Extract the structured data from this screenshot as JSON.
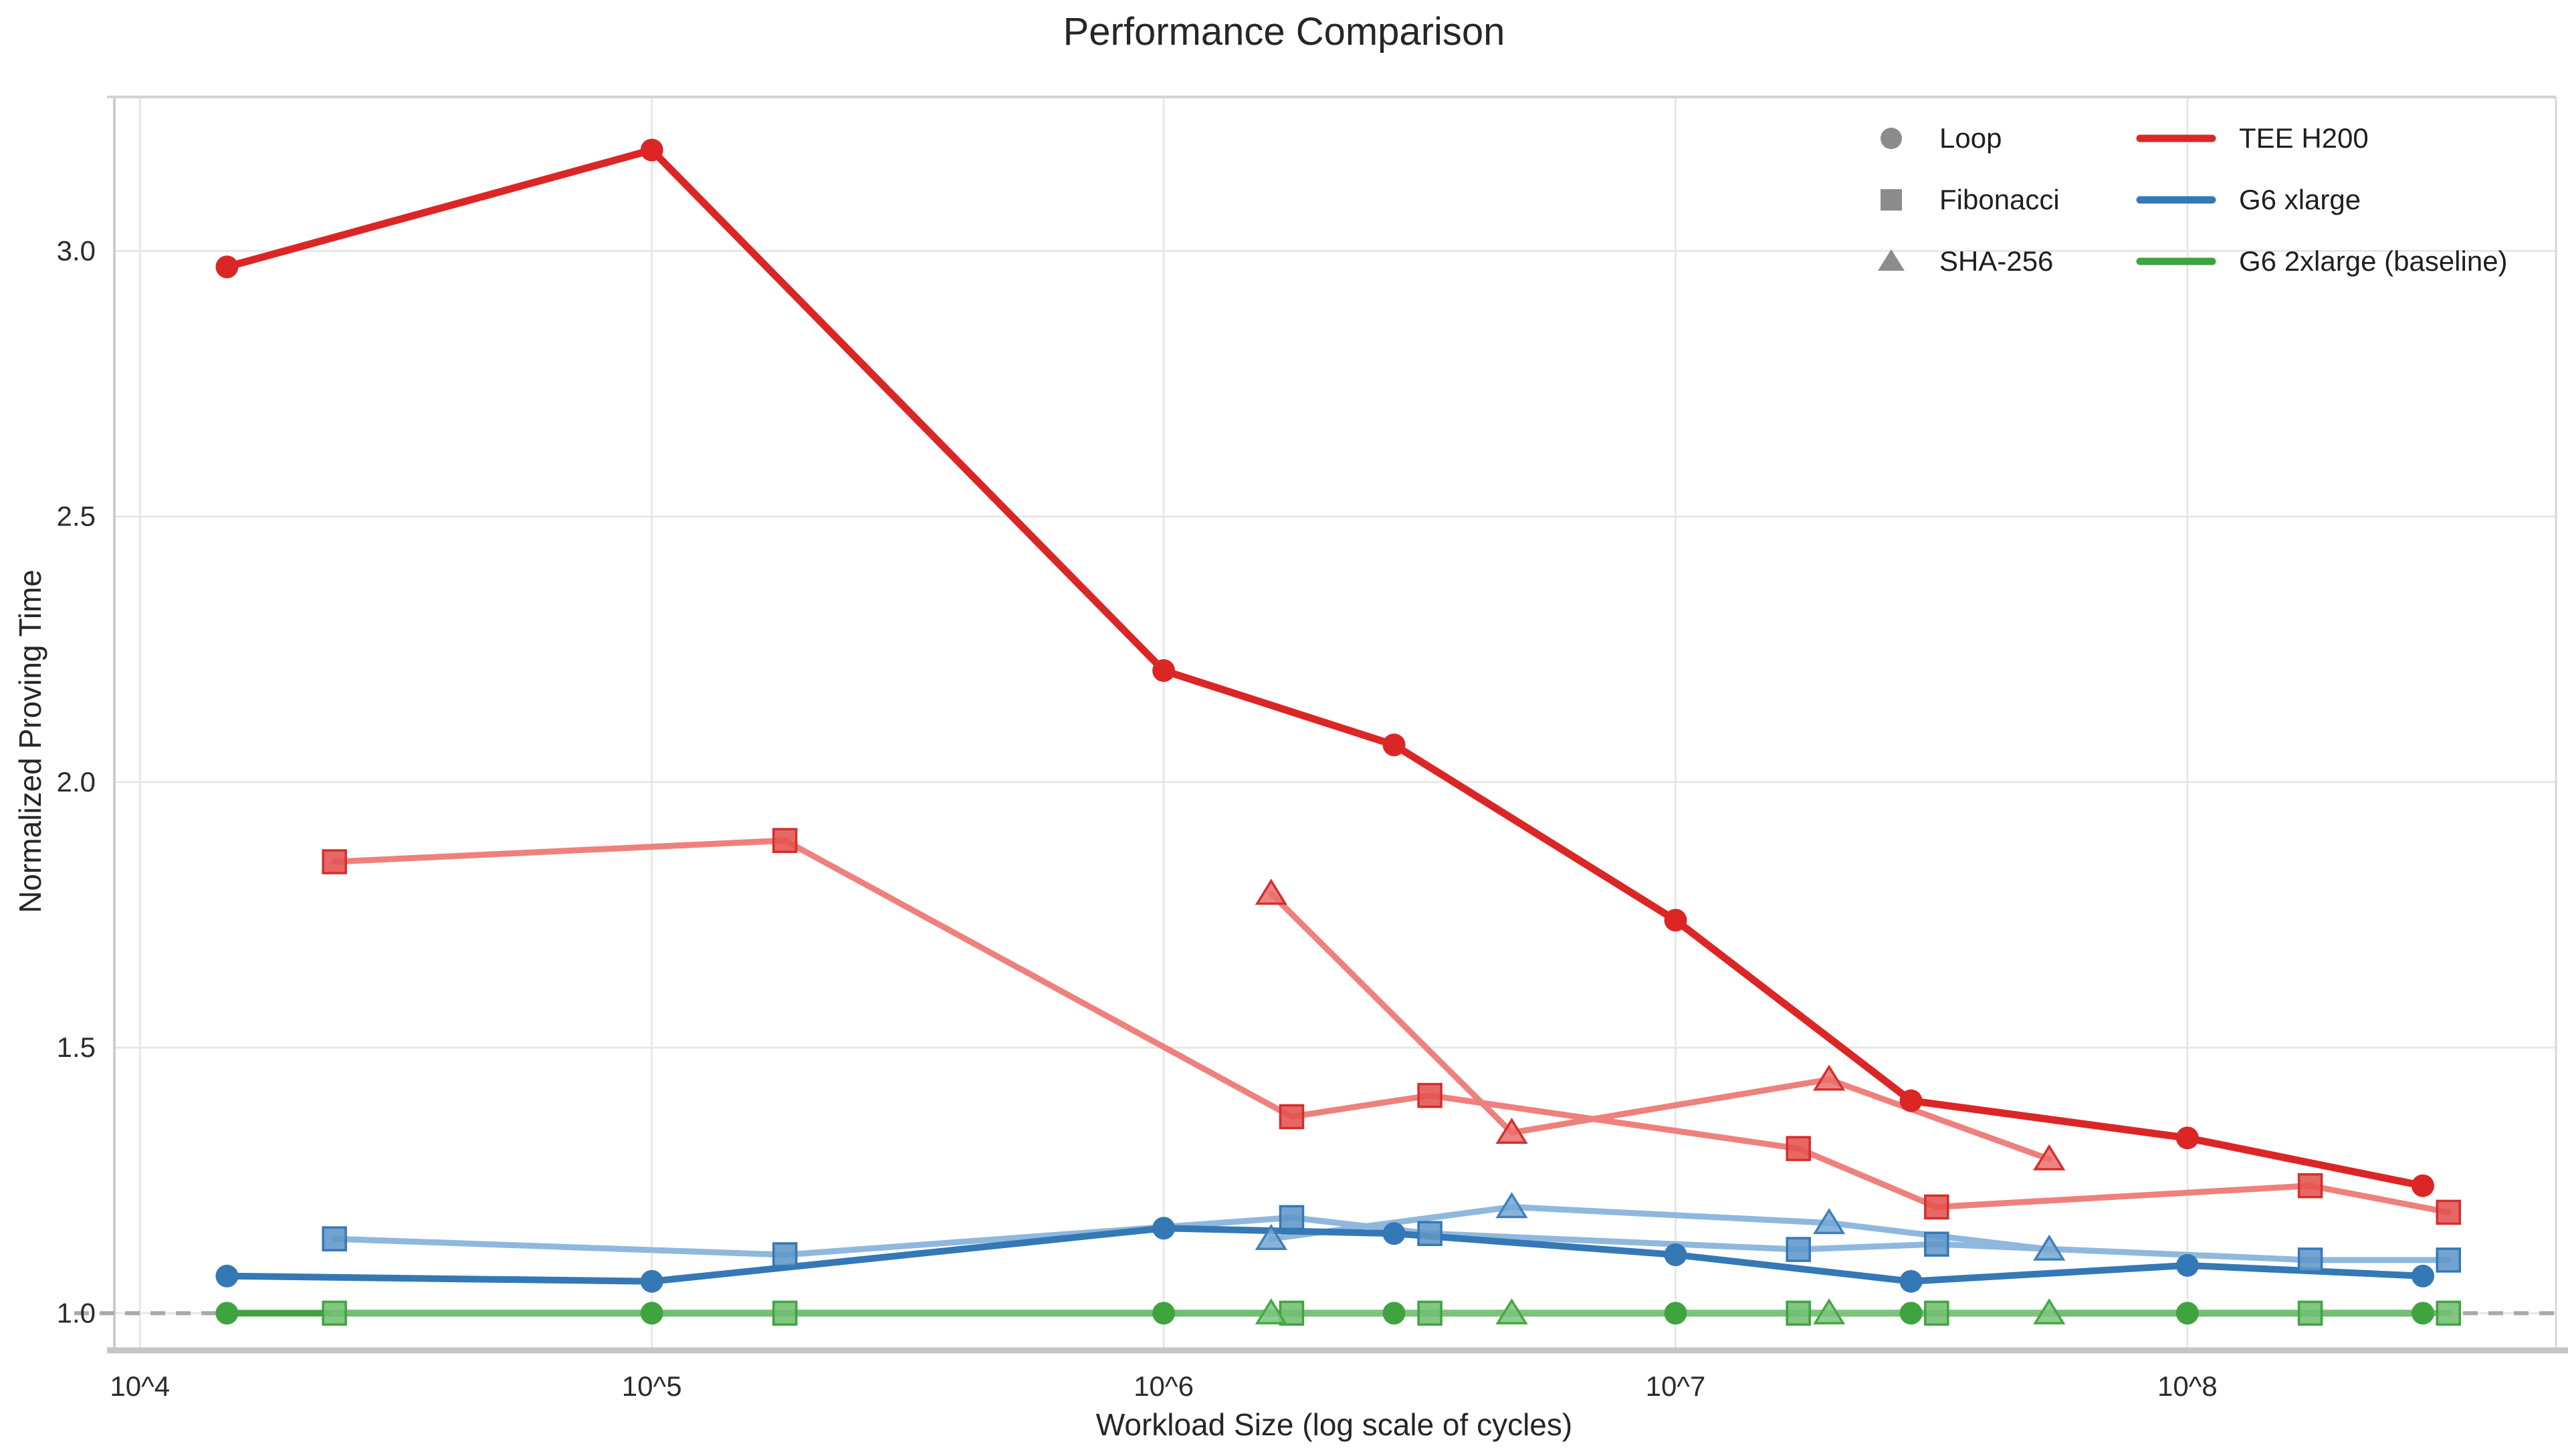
{
  "chart_data": {
    "type": "line",
    "title": "Performance Comparison",
    "xlabel": "Workload Size (log scale of cycles)",
    "ylabel": "Normalized Proving Time",
    "x_scale": "log10",
    "x_range_log10": [
      3.95,
      8.72
    ],
    "ylim": [
      0.93,
      3.29
    ],
    "grid": true,
    "grid_color": "#e7e7e7",
    "spine_color": "#cccccc",
    "x_ticks": [
      {
        "log10": 4,
        "label": "10^4"
      },
      {
        "log10": 5,
        "label": "10^5"
      },
      {
        "log10": 6,
        "label": "10^6"
      },
      {
        "log10": 7,
        "label": "10^7"
      },
      {
        "log10": 8,
        "label": "10^8"
      }
    ],
    "y_ticks": [
      {
        "value": 1.0,
        "label": "1.0"
      },
      {
        "value": 1.5,
        "label": "1.5"
      },
      {
        "value": 2.0,
        "label": "2.0"
      },
      {
        "value": 2.5,
        "label": "2.5"
      },
      {
        "value": 3.0,
        "label": "3.0"
      }
    ],
    "baseline": {
      "value": 1.0,
      "style": "dashed",
      "color": "#a9a9a9"
    },
    "legend": {
      "position": "top-right",
      "frame": false,
      "marker_color": "#8c8c8c",
      "workload_markers": [
        {
          "label": "Loop",
          "marker": "circle"
        },
        {
          "label": "Fibonacci",
          "marker": "square"
        },
        {
          "label": "SHA-256",
          "marker": "triangle"
        }
      ],
      "instances": [
        {
          "label": "TEE H200",
          "color": "#dc2626"
        },
        {
          "label": "G6 xlarge",
          "color": "#3478b6"
        },
        {
          "label": "G6 2xlarge (baseline)",
          "color": "#3fa43f"
        }
      ]
    },
    "series": [
      {
        "instance": "G6 2xlarge (baseline)",
        "workload": "Loop",
        "marker": "circle",
        "line_color": "#3fa43f",
        "line_width": 10,
        "marker_fill": "#3fa43f",
        "marker_edge": "#3fa43f",
        "x_log10": [
          4.17,
          5.0,
          6.0,
          6.45,
          7.0,
          7.46,
          8.0,
          8.46
        ],
        "y": [
          1.0,
          1.0,
          1.0,
          1.0,
          1.0,
          1.0,
          1.0,
          1.0
        ]
      },
      {
        "instance": "G6 2xlarge (baseline)",
        "workload": "Fibonacci",
        "marker": "square",
        "line_color": "#72bf72",
        "line_width": 9,
        "marker_fill": "#72bf72",
        "marker_edge": "#3fa43f",
        "x_log10": [
          4.38,
          5.26,
          6.25,
          6.52,
          7.24,
          7.51,
          8.24,
          8.51
        ],
        "y": [
          1.0,
          1.0,
          1.0,
          1.0,
          1.0,
          1.0,
          1.0,
          1.0
        ]
      },
      {
        "instance": "G6 2xlarge (baseline)",
        "workload": "SHA-256",
        "marker": "triangle",
        "line_color": "#7cc47c",
        "line_width": 9,
        "marker_fill": "#7cc47c",
        "marker_edge": "#44a844",
        "x_log10": [
          6.21,
          6.68,
          7.3,
          7.73
        ],
        "y": [
          1.0,
          1.0,
          1.0,
          1.0
        ]
      },
      {
        "instance": "G6 xlarge",
        "workload": "Fibonacci",
        "marker": "square",
        "line_color": "#8fb8de",
        "line_width": 9,
        "marker_fill": "#6096c8",
        "marker_edge": "#3478b6",
        "x_log10": [
          4.38,
          5.26,
          6.25,
          6.52,
          7.24,
          7.51,
          8.24,
          8.51
        ],
        "y": [
          1.14,
          1.11,
          1.18,
          1.15,
          1.12,
          1.13,
          1.1,
          1.1
        ]
      },
      {
        "instance": "G6 xlarge",
        "workload": "SHA-256",
        "marker": "triangle",
        "line_color": "#8fb8de",
        "line_width": 9,
        "marker_fill": "#74a7d4",
        "marker_edge": "#3f80ba",
        "x_log10": [
          6.21,
          6.68,
          7.3,
          7.73
        ],
        "y": [
          1.14,
          1.2,
          1.17,
          1.12
        ]
      },
      {
        "instance": "G6 xlarge",
        "workload": "Loop",
        "marker": "circle",
        "line_color": "#3478b6",
        "line_width": 10,
        "marker_fill": "#3478b6",
        "marker_edge": "#3478b6",
        "x_log10": [
          4.17,
          5.0,
          6.0,
          6.45,
          7.0,
          7.46,
          8.0,
          8.46
        ],
        "y": [
          1.07,
          1.06,
          1.16,
          1.15,
          1.11,
          1.06,
          1.09,
          1.07
        ]
      },
      {
        "instance": "TEE H200",
        "workload": "Fibonacci",
        "marker": "square",
        "line_color": "#ee817d",
        "line_width": 9,
        "marker_fill": "#e4524e",
        "marker_edge": "#d32f2d",
        "x_log10": [
          4.38,
          5.26,
          6.25,
          6.52,
          7.24,
          7.51,
          8.24,
          8.51
        ],
        "y": [
          1.85,
          1.89,
          1.37,
          1.41,
          1.31,
          1.2,
          1.24,
          1.19
        ]
      },
      {
        "instance": "TEE H200",
        "workload": "SHA-256",
        "marker": "triangle",
        "line_color": "#ee817d",
        "line_width": 9,
        "marker_fill": "#ea6f6c",
        "marker_edge": "#d3302e",
        "x_log10": [
          6.21,
          6.68,
          7.3,
          7.73
        ],
        "y": [
          1.79,
          1.34,
          1.44,
          1.29
        ]
      },
      {
        "instance": "TEE H200",
        "workload": "Loop",
        "marker": "circle",
        "line_color": "#dc2626",
        "line_width": 11,
        "marker_fill": "#dc2626",
        "marker_edge": "#dc2626",
        "x_log10": [
          4.17,
          5.0,
          6.0,
          6.45,
          7.0,
          7.46,
          8.0,
          8.46
        ],
        "y": [
          2.97,
          3.19,
          2.21,
          2.07,
          1.74,
          1.4,
          1.33,
          1.24
        ]
      }
    ]
  }
}
